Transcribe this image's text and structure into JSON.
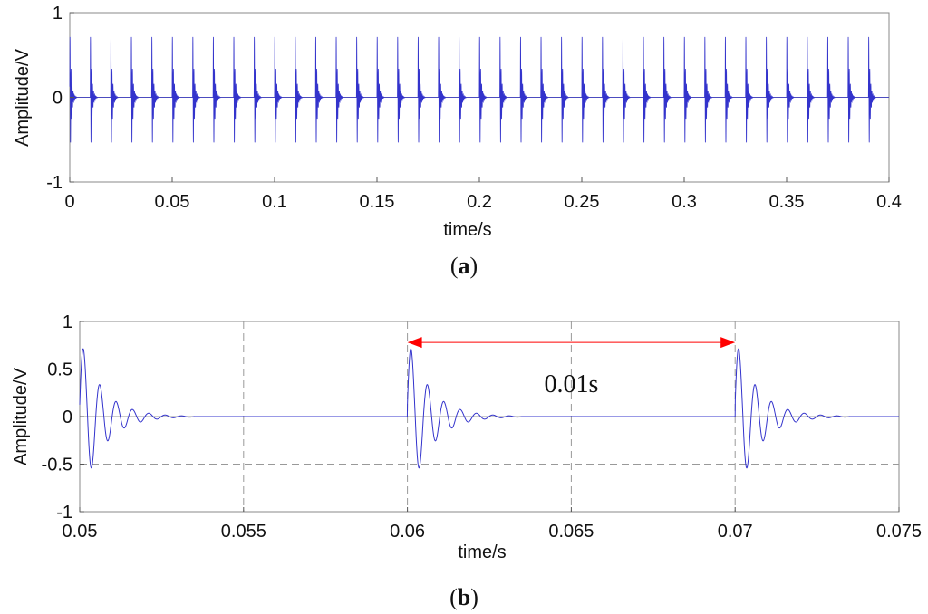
{
  "chart_data": [
    {
      "type": "line",
      "panel_label_prefix": "(",
      "panel_label": "a",
      "panel_label_suffix": ")",
      "xlabel": "time/s",
      "ylabel": "Amplitude/V",
      "xlim": [
        0,
        0.4
      ],
      "ylim": [
        -1,
        1
      ],
      "xticks": [
        "0",
        "0.05",
        "0.1",
        "0.15",
        "0.2",
        "0.25",
        "0.3",
        "0.35",
        "0.4"
      ],
      "xtick_values": [
        0,
        0.05,
        0.1,
        0.15,
        0.2,
        0.25,
        0.3,
        0.35,
        0.4
      ],
      "yticks": [
        "-1",
        "0",
        "1"
      ],
      "ytick_values": [
        -1,
        0,
        1
      ],
      "grid": false,
      "line_color": "#3333cc",
      "series": [
        {
          "pulse_period": 0.01,
          "pulse_start": 0.0,
          "pulse_count": 40,
          "peak_positive": 0.78,
          "peak_negative": -0.62
        }
      ]
    },
    {
      "type": "line",
      "panel_label_prefix": "(",
      "panel_label": "b",
      "panel_label_suffix": ")",
      "xlabel": "time/s",
      "ylabel": "Amplitude/V",
      "xlim": [
        0.05,
        0.075
      ],
      "ylim": [
        -1,
        1
      ],
      "xticks": [
        "0.05",
        "0.055",
        "0.06",
        "0.065",
        "0.07",
        "0.075"
      ],
      "xtick_values": [
        0.05,
        0.055,
        0.06,
        0.065,
        0.07,
        0.075
      ],
      "yticks": [
        "-1",
        "-0.5",
        "0",
        "0.5",
        "1"
      ],
      "ytick_values": [
        -1,
        -0.5,
        0,
        0.5,
        1
      ],
      "grid": true,
      "line_color": "#3333cc",
      "annotation": {
        "text": "0.01s",
        "x_start": 0.06,
        "x_end": 0.07,
        "y": 0.78,
        "color": "#ff0000"
      },
      "series": [
        {
          "pulse_times": [
            0.05,
            0.06,
            0.07
          ],
          "pulse_duration": 0.0025,
          "peak_positive": 0.78,
          "peak_negative": -0.62
        }
      ]
    }
  ]
}
